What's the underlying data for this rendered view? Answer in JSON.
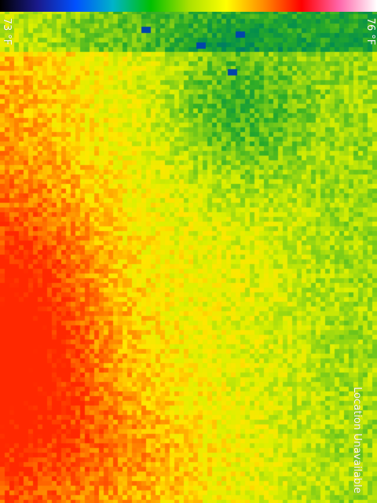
{
  "temperature_scale": {
    "min_label": "73 °F",
    "max_label": "76 °F",
    "palette": [
      "#000000",
      "#1a1a8c",
      "#0050ff",
      "#00b4c8",
      "#00c000",
      "#a8e000",
      "#ffff00",
      "#ff8a00",
      "#ff0000",
      "#ff66aa",
      "#ffffff"
    ]
  },
  "status": {
    "location_text": "Location Unavailable"
  }
}
